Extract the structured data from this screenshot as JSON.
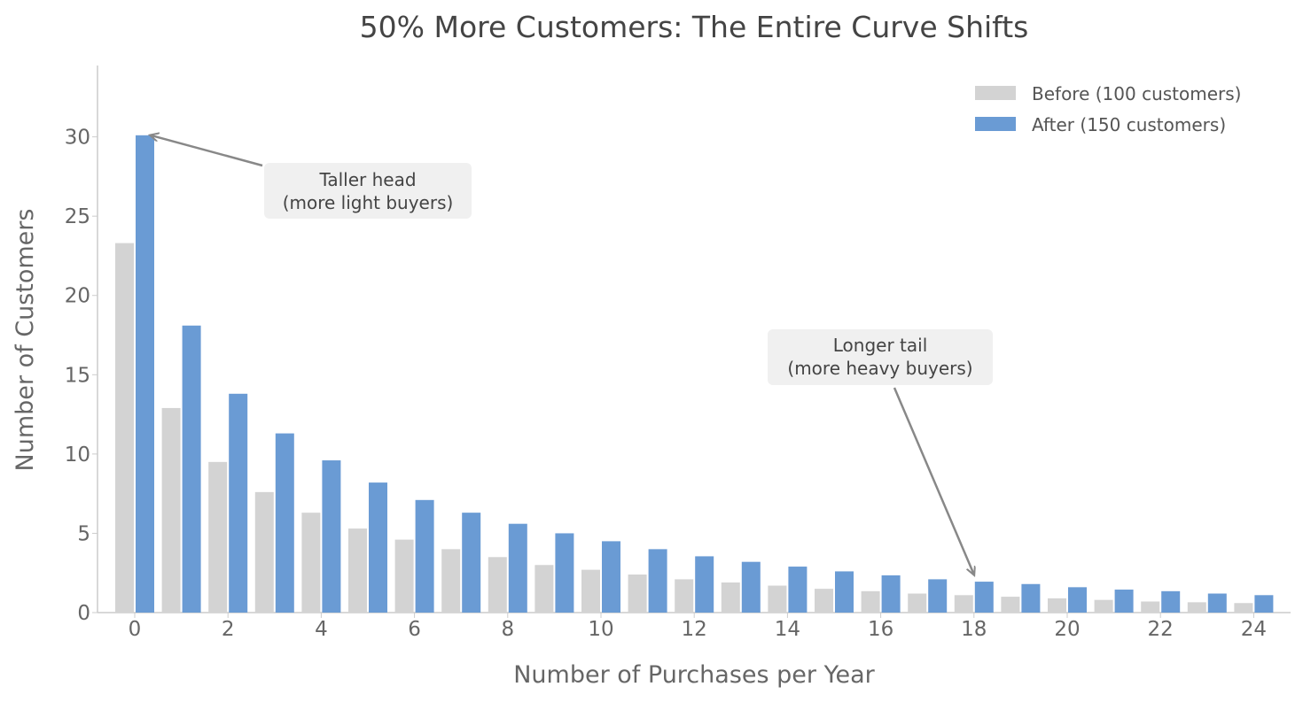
{
  "chart_data": {
    "type": "bar",
    "title": "50% More Customers: The Entire Curve Shifts",
    "xlabel": "Number of Purchases per Year",
    "ylabel": "Number of Customers",
    "x": [
      0,
      1,
      2,
      3,
      4,
      5,
      6,
      7,
      8,
      9,
      10,
      11,
      12,
      13,
      14,
      15,
      16,
      17,
      18,
      19,
      20,
      21,
      22,
      23,
      24
    ],
    "x_ticks": [
      0,
      2,
      4,
      6,
      8,
      10,
      12,
      14,
      16,
      18,
      20,
      22,
      24
    ],
    "y_ticks": [
      0,
      5,
      10,
      15,
      20,
      25,
      30
    ],
    "ylim": [
      0,
      34.5
    ],
    "grid": false,
    "legend_position": "top-right",
    "series": [
      {
        "name": "Before (100 customers)",
        "color": "#d3d3d3",
        "values": [
          23.3,
          12.9,
          9.5,
          7.6,
          6.3,
          5.3,
          4.6,
          4.0,
          3.5,
          3.0,
          2.7,
          2.4,
          2.1,
          1.9,
          1.7,
          1.5,
          1.35,
          1.2,
          1.1,
          1.0,
          0.9,
          0.8,
          0.7,
          0.65,
          0.6
        ]
      },
      {
        "name": "After (150 customers)",
        "color": "#6a9bd4",
        "values": [
          30.1,
          18.1,
          13.8,
          11.3,
          9.6,
          8.2,
          7.1,
          6.3,
          5.6,
          5.0,
          4.5,
          4.0,
          3.55,
          3.2,
          2.9,
          2.6,
          2.35,
          2.1,
          1.95,
          1.8,
          1.6,
          1.45,
          1.35,
          1.2,
          1.1
        ]
      }
    ],
    "annotations": [
      {
        "id": "head",
        "lines": [
          "Taller head",
          "(more light buyers)"
        ],
        "target_x": 0,
        "target_y": 30.1
      },
      {
        "id": "tail",
        "lines": [
          "Longer tail",
          "(more heavy buyers)"
        ],
        "target_x": 18,
        "target_y": 2.4
      }
    ]
  }
}
